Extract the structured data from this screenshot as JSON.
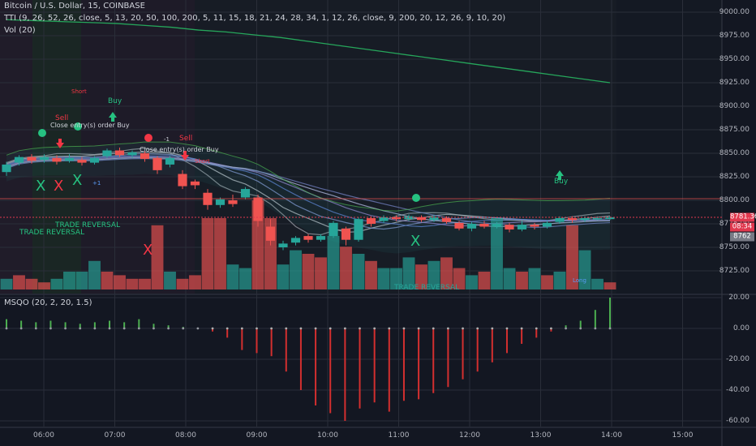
{
  "header": {
    "symbol_line": "Bitcoin / U.S. Dollar, 15, COINBASE",
    "indicator_line": "TTI (9, 26, 52, 26, close, 5, 13, 20, 50, 100, 200, 5, 11, 15, 18, 21, 24, 28, 34, 1, 12, 26, close, 9, 200, 20, 12, 26, 9, 10, 20)",
    "volume_line": "Vol (20)",
    "osc_line": "MSQO (20, 2, 20, 1.5)"
  },
  "price_axis": [
    "9000.00",
    "8975.00",
    "8950.00",
    "8925.00",
    "8900.00",
    "8875.00",
    "8850.00",
    "8825.00",
    "8800.00",
    "8775.00",
    "8750.00",
    "8725.00"
  ],
  "price_tags": [
    {
      "label": "8781.36",
      "color": "#e0394f"
    },
    {
      "label": "08:34",
      "color": "#e0394f"
    },
    {
      "label": "8762",
      "color": "#787b86"
    }
  ],
  "osc_axis": [
    "20.00",
    "0.00",
    "-20.00",
    "-40.00",
    "-60.00"
  ],
  "time_axis": [
    "06:00",
    "07:00",
    "08:00",
    "09:00",
    "10:00",
    "11:00",
    "12:00",
    "13:00",
    "14:00",
    "15:00"
  ],
  "annotations": {
    "buy": "Buy",
    "sell": "Sell",
    "short": "Short",
    "long": "Long",
    "close_entry": "Close entry(s) order Buy",
    "trade_reversal": "TRADE REVERSAL",
    "x_mark": "X",
    "plus1": "+1",
    "minus1": "-1"
  },
  "colors": {
    "up": "#26a69a",
    "down": "#ef5350",
    "buy_green": "#26c281",
    "sell_red": "#f23645",
    "volume_up": "#26a69a",
    "volume_down": "#ef5350"
  },
  "chart_data": [
    {
      "type": "candlestick",
      "title": "Bitcoin / U.S. Dollar, 15, COINBASE",
      "ylim": [
        8710,
        9005
      ],
      "candles": [
        {
          "o": 8830,
          "c": 8838,
          "h": 8841,
          "l": 8826
        },
        {
          "o": 8840,
          "c": 8846,
          "h": 8848,
          "l": 8837
        },
        {
          "o": 8846,
          "c": 8842,
          "h": 8849,
          "l": 8839
        },
        {
          "o": 8843,
          "c": 8846,
          "h": 8849,
          "l": 8840
        },
        {
          "o": 8845,
          "c": 8841,
          "h": 8848,
          "l": 8838
        },
        {
          "o": 8842,
          "c": 8845,
          "h": 8849,
          "l": 8840
        },
        {
          "o": 8843,
          "c": 8840,
          "h": 8846,
          "l": 8837
        },
        {
          "o": 8840,
          "c": 8845,
          "h": 8847,
          "l": 8838
        },
        {
          "o": 8847,
          "c": 8853,
          "h": 8855,
          "l": 8845
        },
        {
          "o": 8853,
          "c": 8848,
          "h": 8856,
          "l": 8846
        },
        {
          "o": 8848,
          "c": 8851,
          "h": 8853,
          "l": 8845
        },
        {
          "o": 8850,
          "c": 8844,
          "h": 8852,
          "l": 8841
        },
        {
          "o": 8845,
          "c": 8832,
          "h": 8847,
          "l": 8828
        },
        {
          "o": 8838,
          "c": 8845,
          "h": 8847,
          "l": 8835
        },
        {
          "o": 8828,
          "c": 8815,
          "h": 8832,
          "l": 8812
        },
        {
          "o": 8820,
          "c": 8816,
          "h": 8822,
          "l": 8812
        },
        {
          "o": 8808,
          "c": 8795,
          "h": 8812,
          "l": 8790
        },
        {
          "o": 8795,
          "c": 8801,
          "h": 8803,
          "l": 8792
        },
        {
          "o": 8800,
          "c": 8796,
          "h": 8806,
          "l": 8793
        },
        {
          "o": 8803,
          "c": 8812,
          "h": 8814,
          "l": 8801
        },
        {
          "o": 8803,
          "c": 8778,
          "h": 8806,
          "l": 8772
        },
        {
          "o": 8772,
          "c": 8757,
          "h": 8780,
          "l": 8752
        },
        {
          "o": 8750,
          "c": 8754,
          "h": 8757,
          "l": 8747
        },
        {
          "o": 8755,
          "c": 8760,
          "h": 8762,
          "l": 8752
        },
        {
          "o": 8762,
          "c": 8758,
          "h": 8764,
          "l": 8755
        },
        {
          "o": 8758,
          "c": 8762,
          "h": 8764,
          "l": 8756
        },
        {
          "o": 8762,
          "c": 8776,
          "h": 8778,
          "l": 8760
        },
        {
          "o": 8770,
          "c": 8758,
          "h": 8772,
          "l": 8752
        },
        {
          "o": 8758,
          "c": 8780,
          "h": 8782,
          "l": 8756
        },
        {
          "o": 8781,
          "c": 8775,
          "h": 8783,
          "l": 8772
        },
        {
          "o": 8778,
          "c": 8782,
          "h": 8784,
          "l": 8776
        },
        {
          "o": 8782,
          "c": 8780,
          "h": 8784,
          "l": 8778
        },
        {
          "o": 8780,
          "c": 8783,
          "h": 8785,
          "l": 8778
        },
        {
          "o": 8782,
          "c": 8779,
          "h": 8784,
          "l": 8777
        },
        {
          "o": 8779,
          "c": 8782,
          "h": 8784,
          "l": 8777
        },
        {
          "o": 8781,
          "c": 8777,
          "h": 8783,
          "l": 8775
        },
        {
          "o": 8776,
          "c": 8770,
          "h": 8778,
          "l": 8768
        },
        {
          "o": 8770,
          "c": 8775,
          "h": 8777,
          "l": 8767
        },
        {
          "o": 8775,
          "c": 8772,
          "h": 8778,
          "l": 8770
        },
        {
          "o": 8772,
          "c": 8775,
          "h": 8777,
          "l": 8770
        },
        {
          "o": 8774,
          "c": 8769,
          "h": 8776,
          "l": 8766
        },
        {
          "o": 8769,
          "c": 8774,
          "h": 8778,
          "l": 8767
        },
        {
          "o": 8774,
          "c": 8772,
          "h": 8776,
          "l": 8769
        },
        {
          "o": 8772,
          "c": 8776,
          "h": 8778,
          "l": 8770
        },
        {
          "o": 8777,
          "c": 8781,
          "h": 8783,
          "l": 8775
        },
        {
          "o": 8781,
          "c": 8779,
          "h": 8783,
          "l": 8776
        },
        {
          "o": 8779,
          "c": 8781,
          "h": 8783,
          "l": 8777
        },
        {
          "o": 8781,
          "c": 8781,
          "h": 8783,
          "l": 8779
        },
        {
          "o": 8780,
          "c": 8782,
          "h": 8783,
          "l": 8779
        }
      ],
      "ma_line": [
        8992,
        8991,
        8990,
        8989,
        8988,
        8986,
        8984,
        8981,
        8979,
        8976,
        8973,
        8969,
        8965,
        8961,
        8957,
        8953,
        8949,
        8945,
        8941,
        8937,
        8933,
        8929,
        8925
      ]
    },
    {
      "type": "bar",
      "title": "Vol (20)",
      "values": [
        3,
        4,
        3,
        2,
        3,
        5,
        5,
        8,
        5,
        4,
        3,
        3,
        18,
        5,
        3,
        4,
        20,
        20,
        7,
        6,
        25,
        20,
        7,
        11,
        10,
        9,
        15,
        12,
        10,
        8,
        6,
        6,
        9,
        7,
        8,
        9,
        6,
        4,
        5,
        20,
        6,
        5,
        6,
        4,
        5,
        18,
        11,
        3,
        2
      ],
      "directions": [
        "u",
        "d",
        "d",
        "d",
        "u",
        "u",
        "u",
        "u",
        "d",
        "d",
        "d",
        "d",
        "d",
        "u",
        "d",
        "d",
        "d",
        "d",
        "u",
        "u",
        "d",
        "d",
        "u",
        "u",
        "d",
        "d",
        "u",
        "d",
        "u",
        "d",
        "u",
        "u",
        "u",
        "d",
        "u",
        "d",
        "d",
        "u",
        "d",
        "u",
        "u",
        "d",
        "u",
        "d",
        "u",
        "d",
        "u",
        "u",
        "d"
      ]
    },
    {
      "type": "bar",
      "title": "MSQO (20, 2, 20, 1.5)",
      "ylim": [
        -62,
        22
      ],
      "values": [
        6,
        5,
        4,
        5,
        4,
        3,
        4,
        5,
        4,
        6,
        3,
        2,
        1,
        0,
        -2,
        -6,
        -14,
        -16,
        -18,
        -28,
        -40,
        -50,
        -55,
        -60,
        -52,
        -48,
        -54,
        -47,
        -46,
        -42,
        -38,
        -33,
        -28,
        -22,
        -16,
        -10,
        -6,
        -2,
        2,
        5,
        12,
        20
      ]
    }
  ]
}
